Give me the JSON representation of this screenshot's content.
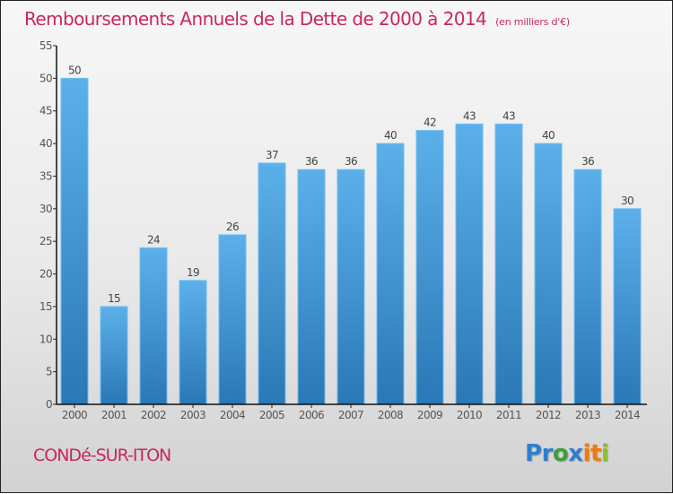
{
  "chart_data": {
    "type": "bar",
    "title": "Remboursements Annuels de la Dette de 2000 à 2014",
    "unit_note": "(en milliers d'€)",
    "xlabel": "",
    "ylabel": "",
    "categories": [
      "2000",
      "2001",
      "2002",
      "2003",
      "2004",
      "2005",
      "2006",
      "2007",
      "2008",
      "2009",
      "2010",
      "2011",
      "2012",
      "2013",
      "2014"
    ],
    "values": [
      50,
      15,
      24,
      19,
      26,
      37,
      36,
      36,
      40,
      42,
      43,
      43,
      40,
      36,
      30
    ],
    "ylim": [
      0,
      55
    ],
    "yticks": [
      0,
      5,
      10,
      15,
      20,
      25,
      30,
      35,
      40,
      45,
      50,
      55
    ],
    "grid": false,
    "legend": "none",
    "colors": {
      "bar_top": "#5cb0ea",
      "bar_bottom": "#2a78b6",
      "bar_edge": "#6dbdf2",
      "title": "#c8285a"
    }
  },
  "footer": {
    "city": "CONDé-SUR-ITON",
    "logo": [
      {
        "char": "P",
        "color": "#2d7fd0"
      },
      {
        "char": "r",
        "color": "#2d7fd0"
      },
      {
        "char": "o",
        "color": "#3aa03a"
      },
      {
        "char": "x",
        "color": "#2d7fd0"
      },
      {
        "char": "i",
        "color": "#f07a10"
      },
      {
        "char": "t",
        "color": "#f07a10"
      },
      {
        "char": "i",
        "color": "#8fbf2a"
      }
    ]
  }
}
